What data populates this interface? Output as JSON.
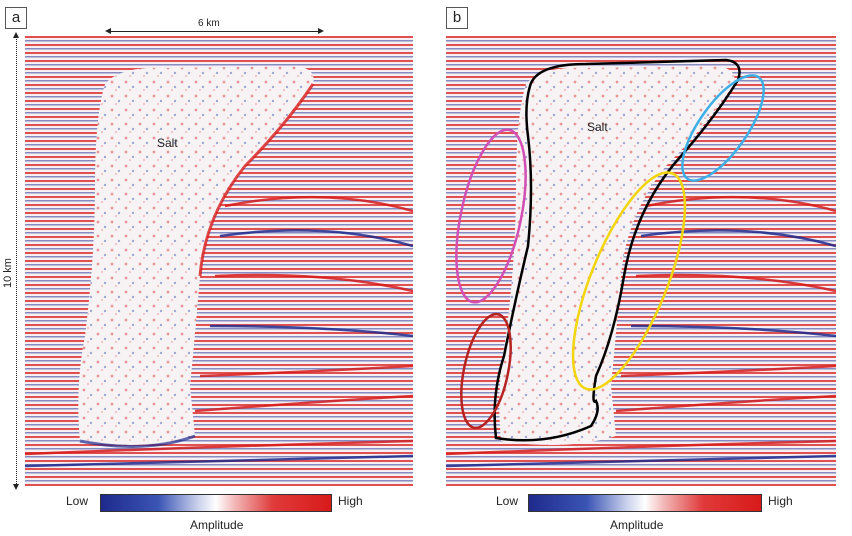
{
  "panels": [
    {
      "id": "a",
      "label": "a",
      "salt_label": "Salt",
      "scale_bar": "6 km",
      "depth_label": "10 km"
    },
    {
      "id": "b",
      "label": "b",
      "salt_label": "Salt"
    }
  ],
  "colorbar": {
    "low": "Low",
    "high": "High",
    "title": "Amplitude"
  },
  "colors": {
    "positive": "#d81a1a",
    "negative": "#1e2a8c",
    "salt_outline": "#000000",
    "ellipse_magenta": "#d24fb4",
    "ellipse_red": "#b52222",
    "ellipse_cyan": "#3cb0e6",
    "ellipse_yellow": "#f2d50d"
  }
}
